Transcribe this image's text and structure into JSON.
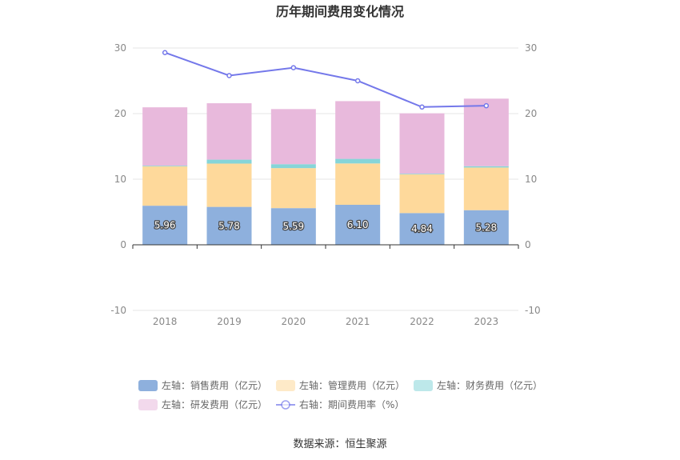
{
  "chart_data": {
    "type": "bar",
    "title": "历年期间费用变化情况",
    "categories": [
      "2018",
      "2019",
      "2020",
      "2021",
      "2022",
      "2023"
    ],
    "stacked": true,
    "left_axis": {
      "ylim": [
        -10,
        30
      ],
      "ticks": [
        "-10",
        "0",
        "10",
        "20",
        "30"
      ]
    },
    "right_axis": {
      "ylim": [
        -10,
        30
      ],
      "ticks": [
        "-10",
        "0",
        "10",
        "20",
        "30"
      ]
    },
    "series": [
      {
        "name": "左轴：销售费用（亿元）",
        "type": "bar",
        "axis": "left",
        "color": "#8eb0dd",
        "values": [
          5.96,
          5.78,
          5.59,
          6.1,
          4.84,
          5.28
        ],
        "labels": [
          "5.96",
          "5.78",
          "5.59",
          "6.10",
          "4.84",
          "5.28"
        ]
      },
      {
        "name": "左轴：管理费用（亿元）",
        "type": "bar",
        "axis": "left",
        "color": "#fed99b",
        "values": [
          6.0,
          6.6,
          6.1,
          6.3,
          5.9,
          6.5
        ]
      },
      {
        "name": "左轴：财务费用（亿元）",
        "type": "bar",
        "axis": "left",
        "color": "#86d5d8",
        "values": [
          0.1,
          0.6,
          0.6,
          0.7,
          0.1,
          0.2
        ]
      },
      {
        "name": "左轴：研发费用（亿元）",
        "type": "bar",
        "axis": "left",
        "color": "#e8b9dc",
        "values": [
          8.9,
          8.6,
          8.4,
          8.8,
          9.2,
          10.3
        ]
      },
      {
        "name": "右轴：期间费用率（%）",
        "type": "line",
        "axis": "right",
        "color": "#7478ea",
        "values": [
          29.3,
          25.8,
          27.0,
          25.0,
          21.0,
          21.2
        ]
      }
    ],
    "legend_position": "bottom",
    "grid": true
  },
  "source": "数据来源：恒生聚源"
}
